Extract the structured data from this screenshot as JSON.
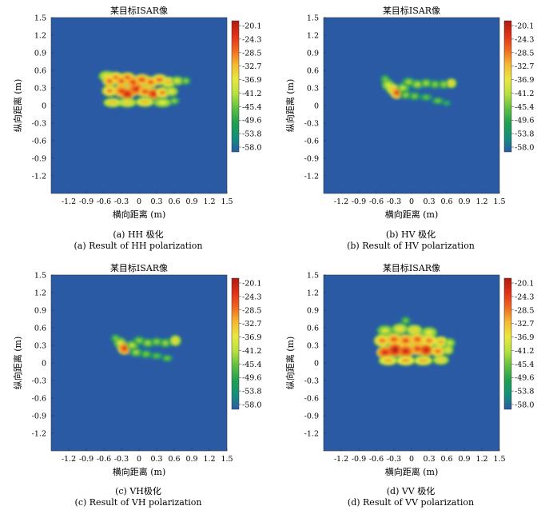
{
  "figure": {
    "captions": [
      {
        "cn": "(a) HH 极化",
        "en": "(a) Result of HH polarization"
      },
      {
        "cn": "(b) HV 极化",
        "en": "(b) Result of HV polarization"
      },
      {
        "cn": "(c) VH极化",
        "en": "(c) Result of VH polarization"
      },
      {
        "cn": "(d) VV 极化",
        "en": "(d) Result of VV polarization"
      }
    ]
  },
  "colors": {
    "background": "#2b5aa4",
    "colormap": [
      "#b01a10",
      "#e03018",
      "#f06820",
      "#f5b830",
      "#e8e840",
      "#b8e040",
      "#60c040",
      "#20a050",
      "#12907a",
      "#2b5aa4"
    ]
  },
  "chart_data": [
    {
      "type": "heatmap",
      "title": "某目标ISAR像",
      "xlabel": "横向距离 (m)",
      "ylabel": "纵向距离 (m)",
      "xlim": [
        -1.5,
        1.5
      ],
      "ylim": [
        -1.5,
        1.5
      ],
      "xticks": [
        "-1.2",
        "-0.9",
        "-0.6",
        "-0.3",
        "0",
        "0.3",
        "0.6",
        "0.9",
        "1.2",
        "1.5"
      ],
      "yticks": [
        "1.5",
        "1.2",
        "0.9",
        "0.6",
        "0.3",
        "0",
        "-0.3",
        "-0.6",
        "-0.9",
        "-1.2"
      ],
      "colorbar": {
        "ticks": [
          "-20.1",
          "-24.3",
          "-28.5",
          "-32.7",
          "-36.9",
          "-41.2",
          "-45.4",
          "-49.6",
          "-53.8",
          "-58.0"
        ],
        "min": -58.0,
        "max": -20.1
      },
      "blobs": [
        {
          "x": -0.55,
          "y": 0.5,
          "w": 0.1,
          "h": 0.06,
          "v": -36.0
        },
        {
          "x": -0.5,
          "y": 0.42,
          "w": 0.08,
          "h": 0.06,
          "v": -28.0
        },
        {
          "x": -0.4,
          "y": 0.48,
          "w": 0.09,
          "h": 0.06,
          "v": -30.0
        },
        {
          "x": -0.3,
          "y": 0.42,
          "w": 0.08,
          "h": 0.06,
          "v": -27.0
        },
        {
          "x": -0.2,
          "y": 0.48,
          "w": 0.09,
          "h": 0.05,
          "v": -28.0
        },
        {
          "x": -0.1,
          "y": 0.4,
          "w": 0.09,
          "h": 0.06,
          "v": -26.0
        },
        {
          "x": 0.05,
          "y": 0.44,
          "w": 0.1,
          "h": 0.06,
          "v": -27.0
        },
        {
          "x": 0.2,
          "y": 0.4,
          "w": 0.09,
          "h": 0.06,
          "v": -28.0
        },
        {
          "x": 0.35,
          "y": 0.44,
          "w": 0.1,
          "h": 0.06,
          "v": -29.0
        },
        {
          "x": 0.5,
          "y": 0.4,
          "w": 0.09,
          "h": 0.06,
          "v": -33.0
        },
        {
          "x": 0.65,
          "y": 0.42,
          "w": 0.08,
          "h": 0.05,
          "v": -38.0
        },
        {
          "x": 0.8,
          "y": 0.42,
          "w": 0.05,
          "h": 0.04,
          "v": -42.0
        },
        {
          "x": -0.5,
          "y": 0.25,
          "w": 0.09,
          "h": 0.06,
          "v": -30.0
        },
        {
          "x": -0.3,
          "y": 0.25,
          "w": 0.09,
          "h": 0.07,
          "v": -26.0
        },
        {
          "x": -0.2,
          "y": 0.2,
          "w": 0.08,
          "h": 0.06,
          "v": -22.0
        },
        {
          "x": -0.05,
          "y": 0.28,
          "w": 0.1,
          "h": 0.07,
          "v": -24.0
        },
        {
          "x": 0.1,
          "y": 0.24,
          "w": 0.09,
          "h": 0.06,
          "v": -27.0
        },
        {
          "x": 0.25,
          "y": 0.2,
          "w": 0.08,
          "h": 0.06,
          "v": -23.0
        },
        {
          "x": 0.4,
          "y": 0.22,
          "w": 0.09,
          "h": 0.06,
          "v": -30.0
        },
        {
          "x": 0.55,
          "y": 0.24,
          "w": 0.08,
          "h": 0.05,
          "v": -36.0
        },
        {
          "x": -0.45,
          "y": 0.05,
          "w": 0.12,
          "h": 0.05,
          "v": -34.0
        },
        {
          "x": -0.2,
          "y": 0.05,
          "w": 0.12,
          "h": 0.05,
          "v": -35.0
        },
        {
          "x": 0.1,
          "y": 0.06,
          "w": 0.12,
          "h": 0.05,
          "v": -33.0
        },
        {
          "x": 0.4,
          "y": 0.05,
          "w": 0.12,
          "h": 0.05,
          "v": -37.0
        },
        {
          "x": 0.6,
          "y": 0.08,
          "w": 0.06,
          "h": 0.04,
          "v": -42.0
        }
      ]
    },
    {
      "type": "heatmap",
      "title": "某目标ISAR像",
      "xlabel": "横向距离 (m)",
      "ylabel": "纵向距离 (m)",
      "xlim": [
        -1.5,
        1.5
      ],
      "ylim": [
        -1.5,
        1.5
      ],
      "xticks": [
        "-1.2",
        "-0.9",
        "-0.6",
        "-0.3",
        "0",
        "0.3",
        "0.6",
        "0.9",
        "1.2",
        "1.5"
      ],
      "yticks": [
        "1.5",
        "1.2",
        "0.9",
        "0.6",
        "0.3",
        "0",
        "-0.3",
        "-0.6",
        "-0.9",
        "-1.2"
      ],
      "colorbar": {
        "ticks": [
          "-20.1",
          "-24.3",
          "-28.5",
          "-32.7",
          "-36.9",
          "-41.2",
          "-45.4",
          "-49.6",
          "-53.8",
          "-58.0"
        ],
        "min": -58.0,
        "max": -20.1
      },
      "blobs": [
        {
          "x": -0.45,
          "y": 0.45,
          "w": 0.06,
          "h": 0.05,
          "v": -44.0
        },
        {
          "x": -0.4,
          "y": 0.35,
          "w": 0.07,
          "h": 0.06,
          "v": -38.0
        },
        {
          "x": -0.32,
          "y": 0.28,
          "w": 0.07,
          "h": 0.06,
          "v": -33.0
        },
        {
          "x": -0.25,
          "y": 0.22,
          "w": 0.07,
          "h": 0.07,
          "v": -26.0
        },
        {
          "x": -0.15,
          "y": 0.3,
          "w": 0.08,
          "h": 0.05,
          "v": -40.0
        },
        {
          "x": -0.05,
          "y": 0.4,
          "w": 0.08,
          "h": 0.05,
          "v": -42.0
        },
        {
          "x": 0.1,
          "y": 0.36,
          "w": 0.08,
          "h": 0.05,
          "v": -41.0
        },
        {
          "x": 0.25,
          "y": 0.38,
          "w": 0.08,
          "h": 0.05,
          "v": -42.0
        },
        {
          "x": 0.4,
          "y": 0.36,
          "w": 0.07,
          "h": 0.05,
          "v": -43.0
        },
        {
          "x": 0.55,
          "y": 0.36,
          "w": 0.06,
          "h": 0.05,
          "v": -42.0
        },
        {
          "x": 0.68,
          "y": 0.38,
          "w": 0.05,
          "h": 0.05,
          "v": -34.0
        },
        {
          "x": -0.1,
          "y": 0.18,
          "w": 0.08,
          "h": 0.05,
          "v": -43.0
        },
        {
          "x": 0.05,
          "y": 0.16,
          "w": 0.08,
          "h": 0.05,
          "v": -44.0
        },
        {
          "x": 0.25,
          "y": 0.14,
          "w": 0.08,
          "h": 0.04,
          "v": -45.0
        },
        {
          "x": 0.45,
          "y": 0.08,
          "w": 0.08,
          "h": 0.04,
          "v": -44.0
        },
        {
          "x": 0.6,
          "y": 0.04,
          "w": 0.05,
          "h": 0.03,
          "v": -47.0
        }
      ]
    },
    {
      "type": "heatmap",
      "title": "某目标ISAR像",
      "xlabel": "横向距离 (m)",
      "ylabel": "纵向距离 (m)",
      "xlim": [
        -1.5,
        1.5
      ],
      "ylim": [
        -1.5,
        1.5
      ],
      "xticks": [
        "-1.2",
        "-0.9",
        "-0.6",
        "-0.3",
        "0",
        "0.3",
        "0.6",
        "0.9",
        "1.2",
        "1.5"
      ],
      "yticks": [
        "1.5",
        "1.2",
        "0.9",
        "0.6",
        "0.3",
        "0",
        "-0.3",
        "-0.6",
        "-0.9",
        "-1.2"
      ],
      "colorbar": {
        "ticks": [
          "-20.1",
          "-24.3",
          "-28.5",
          "-32.7",
          "-36.9",
          "-41.2",
          "-45.4",
          "-49.6",
          "-53.8",
          "-58.0"
        ],
        "min": -58.0,
        "max": -20.1
      },
      "blobs": [
        {
          "x": -0.4,
          "y": 0.42,
          "w": 0.06,
          "h": 0.05,
          "v": -44.0
        },
        {
          "x": -0.32,
          "y": 0.34,
          "w": 0.07,
          "h": 0.06,
          "v": -38.0
        },
        {
          "x": -0.25,
          "y": 0.25,
          "w": 0.07,
          "h": 0.07,
          "v": -25.0
        },
        {
          "x": -0.12,
          "y": 0.3,
          "w": 0.08,
          "h": 0.05,
          "v": -40.0
        },
        {
          "x": 0.0,
          "y": 0.38,
          "w": 0.08,
          "h": 0.05,
          "v": -43.0
        },
        {
          "x": 0.15,
          "y": 0.34,
          "w": 0.08,
          "h": 0.05,
          "v": -42.0
        },
        {
          "x": 0.3,
          "y": 0.36,
          "w": 0.08,
          "h": 0.05,
          "v": -43.0
        },
        {
          "x": 0.45,
          "y": 0.34,
          "w": 0.07,
          "h": 0.05,
          "v": -42.0
        },
        {
          "x": 0.62,
          "y": 0.38,
          "w": 0.06,
          "h": 0.06,
          "v": -35.0
        },
        {
          "x": -0.05,
          "y": 0.18,
          "w": 0.08,
          "h": 0.05,
          "v": -42.0
        },
        {
          "x": 0.12,
          "y": 0.15,
          "w": 0.08,
          "h": 0.05,
          "v": -44.0
        },
        {
          "x": 0.3,
          "y": 0.12,
          "w": 0.08,
          "h": 0.04,
          "v": -45.0
        },
        {
          "x": 0.48,
          "y": 0.08,
          "w": 0.07,
          "h": 0.04,
          "v": -44.0
        }
      ]
    },
    {
      "type": "heatmap",
      "title": "某目标ISAR像",
      "xlabel": "横向距离 (m)",
      "ylabel": "纵向距离 (m)",
      "xlim": [
        -1.5,
        1.5
      ],
      "ylim": [
        -1.5,
        1.5
      ],
      "xticks": [
        "-1.2",
        "-0.9",
        "-0.6",
        "-0.3",
        "0",
        "0.3",
        "0.6",
        "0.9",
        "1.2",
        "1.5"
      ],
      "yticks": [
        "1.5",
        "1.2",
        "0.9",
        "0.6",
        "0.3",
        "0",
        "-0.3",
        "-0.6",
        "-0.9",
        "-1.2"
      ],
      "colorbar": {
        "ticks": [
          "-20.1",
          "-24.3",
          "-28.5",
          "-32.7",
          "-36.9",
          "-41.2",
          "-45.4",
          "-49.6",
          "-53.8",
          "-58.0"
        ],
        "min": -58.0,
        "max": -20.1
      },
      "blobs": [
        {
          "x": -0.1,
          "y": 0.72,
          "w": 0.06,
          "h": 0.05,
          "v": -44.0
        },
        {
          "x": -0.45,
          "y": 0.55,
          "w": 0.1,
          "h": 0.06,
          "v": -38.0
        },
        {
          "x": -0.2,
          "y": 0.58,
          "w": 0.1,
          "h": 0.06,
          "v": -36.0
        },
        {
          "x": 0.05,
          "y": 0.56,
          "w": 0.1,
          "h": 0.06,
          "v": -35.0
        },
        {
          "x": 0.3,
          "y": 0.52,
          "w": 0.1,
          "h": 0.06,
          "v": -37.0
        },
        {
          "x": -0.5,
          "y": 0.38,
          "w": 0.1,
          "h": 0.07,
          "v": -30.0
        },
        {
          "x": -0.3,
          "y": 0.4,
          "w": 0.1,
          "h": 0.07,
          "v": -28.0
        },
        {
          "x": -0.1,
          "y": 0.38,
          "w": 0.1,
          "h": 0.07,
          "v": -27.0
        },
        {
          "x": 0.1,
          "y": 0.4,
          "w": 0.1,
          "h": 0.07,
          "v": -28.0
        },
        {
          "x": 0.3,
          "y": 0.38,
          "w": 0.1,
          "h": 0.07,
          "v": -30.0
        },
        {
          "x": 0.5,
          "y": 0.36,
          "w": 0.09,
          "h": 0.06,
          "v": -32.0
        },
        {
          "x": 0.65,
          "y": 0.34,
          "w": 0.06,
          "h": 0.05,
          "v": -38.0
        },
        {
          "x": -0.45,
          "y": 0.18,
          "w": 0.1,
          "h": 0.07,
          "v": -24.0
        },
        {
          "x": -0.28,
          "y": 0.22,
          "w": 0.09,
          "h": 0.08,
          "v": -21.0
        },
        {
          "x": -0.1,
          "y": 0.2,
          "w": 0.1,
          "h": 0.07,
          "v": -23.0
        },
        {
          "x": 0.1,
          "y": 0.24,
          "w": 0.09,
          "h": 0.07,
          "v": -26.0
        },
        {
          "x": 0.25,
          "y": 0.22,
          "w": 0.08,
          "h": 0.07,
          "v": -22.0
        },
        {
          "x": 0.45,
          "y": 0.2,
          "w": 0.09,
          "h": 0.06,
          "v": -29.0
        },
        {
          "x": 0.62,
          "y": 0.22,
          "w": 0.06,
          "h": 0.05,
          "v": -36.0
        },
        {
          "x": -0.4,
          "y": 0.04,
          "w": 0.12,
          "h": 0.05,
          "v": -32.0
        },
        {
          "x": -0.1,
          "y": 0.04,
          "w": 0.12,
          "h": 0.05,
          "v": -31.0
        },
        {
          "x": 0.2,
          "y": 0.04,
          "w": 0.12,
          "h": 0.05,
          "v": -32.0
        },
        {
          "x": 0.5,
          "y": 0.05,
          "w": 0.1,
          "h": 0.05,
          "v": -35.0
        }
      ]
    }
  ]
}
